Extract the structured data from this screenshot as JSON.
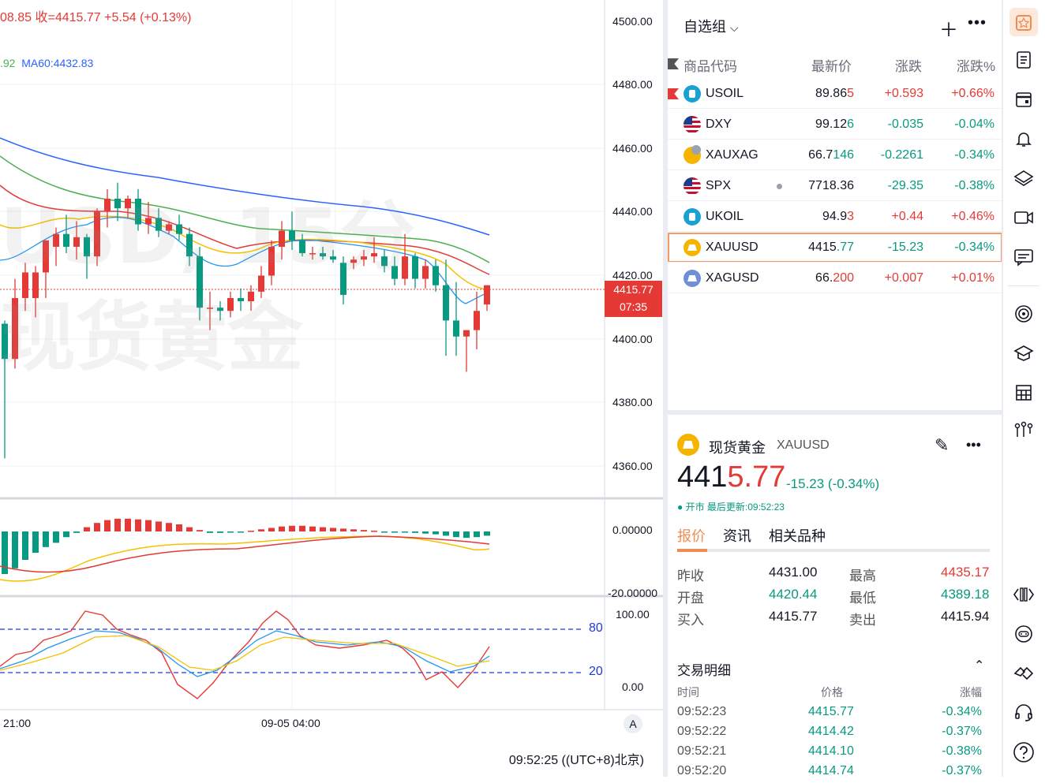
{
  "legend": {
    "ohlc_prefix": "08.85 收=",
    "close": "4415.77",
    "change": "+5.54 (+0.13%)",
    "ma_prefix": ".92",
    "ma60": "MA60:4432.83"
  },
  "watermark": {
    "line1": "USD, 15分",
    "line2": "现货黄金"
  },
  "price_axis": {
    "labels": [
      "4500.00",
      "4480.00",
      "4460.00",
      "4440.00",
      "4420.00",
      "4400.00",
      "4380.00",
      "4360.00"
    ],
    "last_price": "4415.77",
    "countdown": "07:35",
    "macd_labels": [
      "0.00000",
      "-20.00000"
    ],
    "stoch_labels": [
      "100.00",
      "0.00"
    ],
    "stoch_levels": [
      "80",
      "20"
    ]
  },
  "time_axis": {
    "labels": [
      "21:00",
      "09-05 04:00"
    ]
  },
  "bottom_bar": {
    "clock": "09:52:25 ((UTC+8)北京)",
    "auto_label": "A"
  },
  "watchlist": {
    "title": "自选组",
    "columns": {
      "symbol": "商品代码",
      "last": "最新价",
      "change": "涨跌",
      "pct": "涨跌%"
    },
    "rows": [
      {
        "symbol": "USOIL",
        "last_main": "89.86",
        "last_tail": "5",
        "change": "+0.593",
        "pct": "+0.66%",
        "dir": "pos",
        "icon": "oil-icon",
        "flag": true
      },
      {
        "symbol": "DXY",
        "last_main": "99.12",
        "last_tail": "6",
        "change": "-0.035",
        "pct": "-0.04%",
        "dir": "neg",
        "icon": "us-flag-icon"
      },
      {
        "symbol": "XAUXAG",
        "last_main": "66.7",
        "last_tail": "146",
        "change": "-0.2261",
        "pct": "-0.34%",
        "dir": "neg",
        "icon": "gold-silver-icon"
      },
      {
        "symbol": "SPX",
        "last_main": "7718.36",
        "last_tail": "",
        "change": "-29.35",
        "pct": "-0.38%",
        "dir": "neg",
        "icon": "us-flag-icon",
        "dot": true
      },
      {
        "symbol": "UKOIL",
        "last_main": "94.9",
        "last_tail": "3",
        "change": "+0.44",
        "pct": "+0.46%",
        "dir": "pos",
        "icon": "oil-icon"
      },
      {
        "symbol": "XAUUSD",
        "last_main": "4415",
        "last_tail": ".77",
        "change": "-15.23",
        "pct": "-0.34%",
        "dir": "neg",
        "icon": "gold-icon",
        "selected": true
      },
      {
        "symbol": "XAGUSD",
        "last_main": "66.",
        "last_tail": "200",
        "change": "+0.007",
        "pct": "+0.01%",
        "dir": "pos",
        "icon": "silver-icon"
      }
    ]
  },
  "detail": {
    "name": "现货黄金",
    "code": "XAUUSD",
    "price_main": "441",
    "price_tail": "5.77",
    "change": "-15.23 (-0.34%)",
    "status": "● 开市 最后更新:09:52:23",
    "tabs": [
      "报价",
      "资讯",
      "相关品种"
    ],
    "stats": [
      {
        "label": "昨收",
        "value": "4431.00"
      },
      {
        "label": "开盘",
        "value": "4420.44"
      },
      {
        "label": "买入",
        "value": "4415.77"
      },
      {
        "label": "最高",
        "value": "4435.17"
      },
      {
        "label": "最低",
        "value": "4389.18"
      },
      {
        "label": "卖出",
        "value": "4415.94"
      }
    ],
    "trades_title": "交易明细",
    "trade_cols": {
      "time": "时间",
      "price": "价格",
      "chg": "涨幅"
    },
    "trades": [
      {
        "time": "09:52:23",
        "price": "4415.77",
        "chg": "-0.34%"
      },
      {
        "time": "09:52:22",
        "price": "4414.42",
        "chg": "-0.37%"
      },
      {
        "time": "09:52:21",
        "price": "4414.10",
        "chg": "-0.38%"
      },
      {
        "time": "09:52:20",
        "price": "4414.74",
        "chg": "-0.37%"
      }
    ]
  },
  "colors": {
    "up": "#e53935",
    "down": "#089981",
    "accent": "#f28b50",
    "ma_blue": "#2962ff",
    "ma_green": "#4caf50",
    "ma_yellow": "#f5c000",
    "ma_red": "#e53935"
  },
  "chart_data": {
    "type": "candlestick",
    "y_range": [
      4350,
      4505
    ],
    "candles": [
      {
        "o": 4404,
        "h": 4405,
        "l": 4362,
        "c": 4393
      },
      {
        "o": 4393,
        "h": 4418,
        "l": 4390,
        "c": 4412
      },
      {
        "o": 4412,
        "h": 4423,
        "l": 4408,
        "c": 4420
      },
      {
        "o": 4412,
        "h": 4422,
        "l": 4406,
        "c": 4420
      },
      {
        "o": 4420,
        "h": 4430,
        "l": 4412,
        "c": 4430
      },
      {
        "o": 4428,
        "h": 4434,
        "l": 4422,
        "c": 4432
      },
      {
        "o": 4432,
        "h": 4438,
        "l": 4426,
        "c": 4428
      },
      {
        "o": 4428,
        "h": 4436,
        "l": 4424,
        "c": 4431
      },
      {
        "o": 4431,
        "h": 4432,
        "l": 4418,
        "c": 4425
      },
      {
        "o": 4425,
        "h": 4440,
        "l": 4422,
        "c": 4439
      },
      {
        "o": 4439,
        "h": 4446,
        "l": 4434,
        "c": 4443
      },
      {
        "o": 4443,
        "h": 4448,
        "l": 4436,
        "c": 4440
      },
      {
        "o": 4440,
        "h": 4444,
        "l": 4437,
        "c": 4443
      },
      {
        "o": 4443,
        "h": 4446,
        "l": 4433,
        "c": 4435
      },
      {
        "o": 4435,
        "h": 4442,
        "l": 4432,
        "c": 4437
      },
      {
        "o": 4437,
        "h": 4440,
        "l": 4431,
        "c": 4433
      },
      {
        "o": 4433,
        "h": 4436,
        "l": 4432,
        "c": 4435
      },
      {
        "o": 4435,
        "h": 4438,
        "l": 4430,
        "c": 4432
      },
      {
        "o": 4432,
        "h": 4434,
        "l": 4422,
        "c": 4425
      },
      {
        "o": 4425,
        "h": 4428,
        "l": 4405,
        "c": 4409
      },
      {
        "o": 4409,
        "h": 4414,
        "l": 4402,
        "c": 4409
      },
      {
        "o": 4409,
        "h": 4411,
        "l": 4405,
        "c": 4408
      },
      {
        "o": 4408,
        "h": 4414,
        "l": 4406,
        "c": 4412
      },
      {
        "o": 4412,
        "h": 4415,
        "l": 4408,
        "c": 4411
      },
      {
        "o": 4411,
        "h": 4416,
        "l": 4408,
        "c": 4414
      },
      {
        "o": 4414,
        "h": 4422,
        "l": 4412,
        "c": 4419
      },
      {
        "o": 4419,
        "h": 4430,
        "l": 4416,
        "c": 4428
      },
      {
        "o": 4428,
        "h": 4436,
        "l": 4424,
        "c": 4433
      },
      {
        "o": 4433,
        "h": 4439,
        "l": 4427,
        "c": 4430
      },
      {
        "o": 4430,
        "h": 4432,
        "l": 4425,
        "c": 4426
      },
      {
        "o": 4426,
        "h": 4428,
        "l": 4424,
        "c": 4426
      },
      {
        "o": 4426,
        "h": 4428,
        "l": 4424,
        "c": 4425
      },
      {
        "o": 4425,
        "h": 4427,
        "l": 4423,
        "c": 4424
      },
      {
        "o": 4423,
        "h": 4425,
        "l": 4410,
        "c": 4413
      },
      {
        "o": 4423,
        "h": 4425,
        "l": 4421,
        "c": 4424
      },
      {
        "o": 4424,
        "h": 4427,
        "l": 4422,
        "c": 4425
      },
      {
        "o": 4425,
        "h": 4431,
        "l": 4423,
        "c": 4426
      },
      {
        "o": 4425,
        "h": 4427,
        "l": 4420,
        "c": 4422
      },
      {
        "o": 4422,
        "h": 4425,
        "l": 4416,
        "c": 4418
      },
      {
        "o": 4418,
        "h": 4432,
        "l": 4416,
        "c": 4425
      },
      {
        "o": 4425,
        "h": 4426,
        "l": 4415,
        "c": 4418
      },
      {
        "o": 4418,
        "h": 4424,
        "l": 4415,
        "c": 4422
      },
      {
        "o": 4422,
        "h": 4424,
        "l": 4414,
        "c": 4416
      },
      {
        "o": 4416,
        "h": 4424,
        "l": 4394,
        "c": 4405
      },
      {
        "o": 4405,
        "h": 4417,
        "l": 4394,
        "c": 4400
      },
      {
        "o": 4400,
        "h": 4402,
        "l": 4389,
        "c": 4402
      },
      {
        "o": 4402,
        "h": 4414,
        "l": 4396,
        "c": 4408
      },
      {
        "o": 4410,
        "h": 4416,
        "l": 4408,
        "c": 4416
      }
    ]
  }
}
